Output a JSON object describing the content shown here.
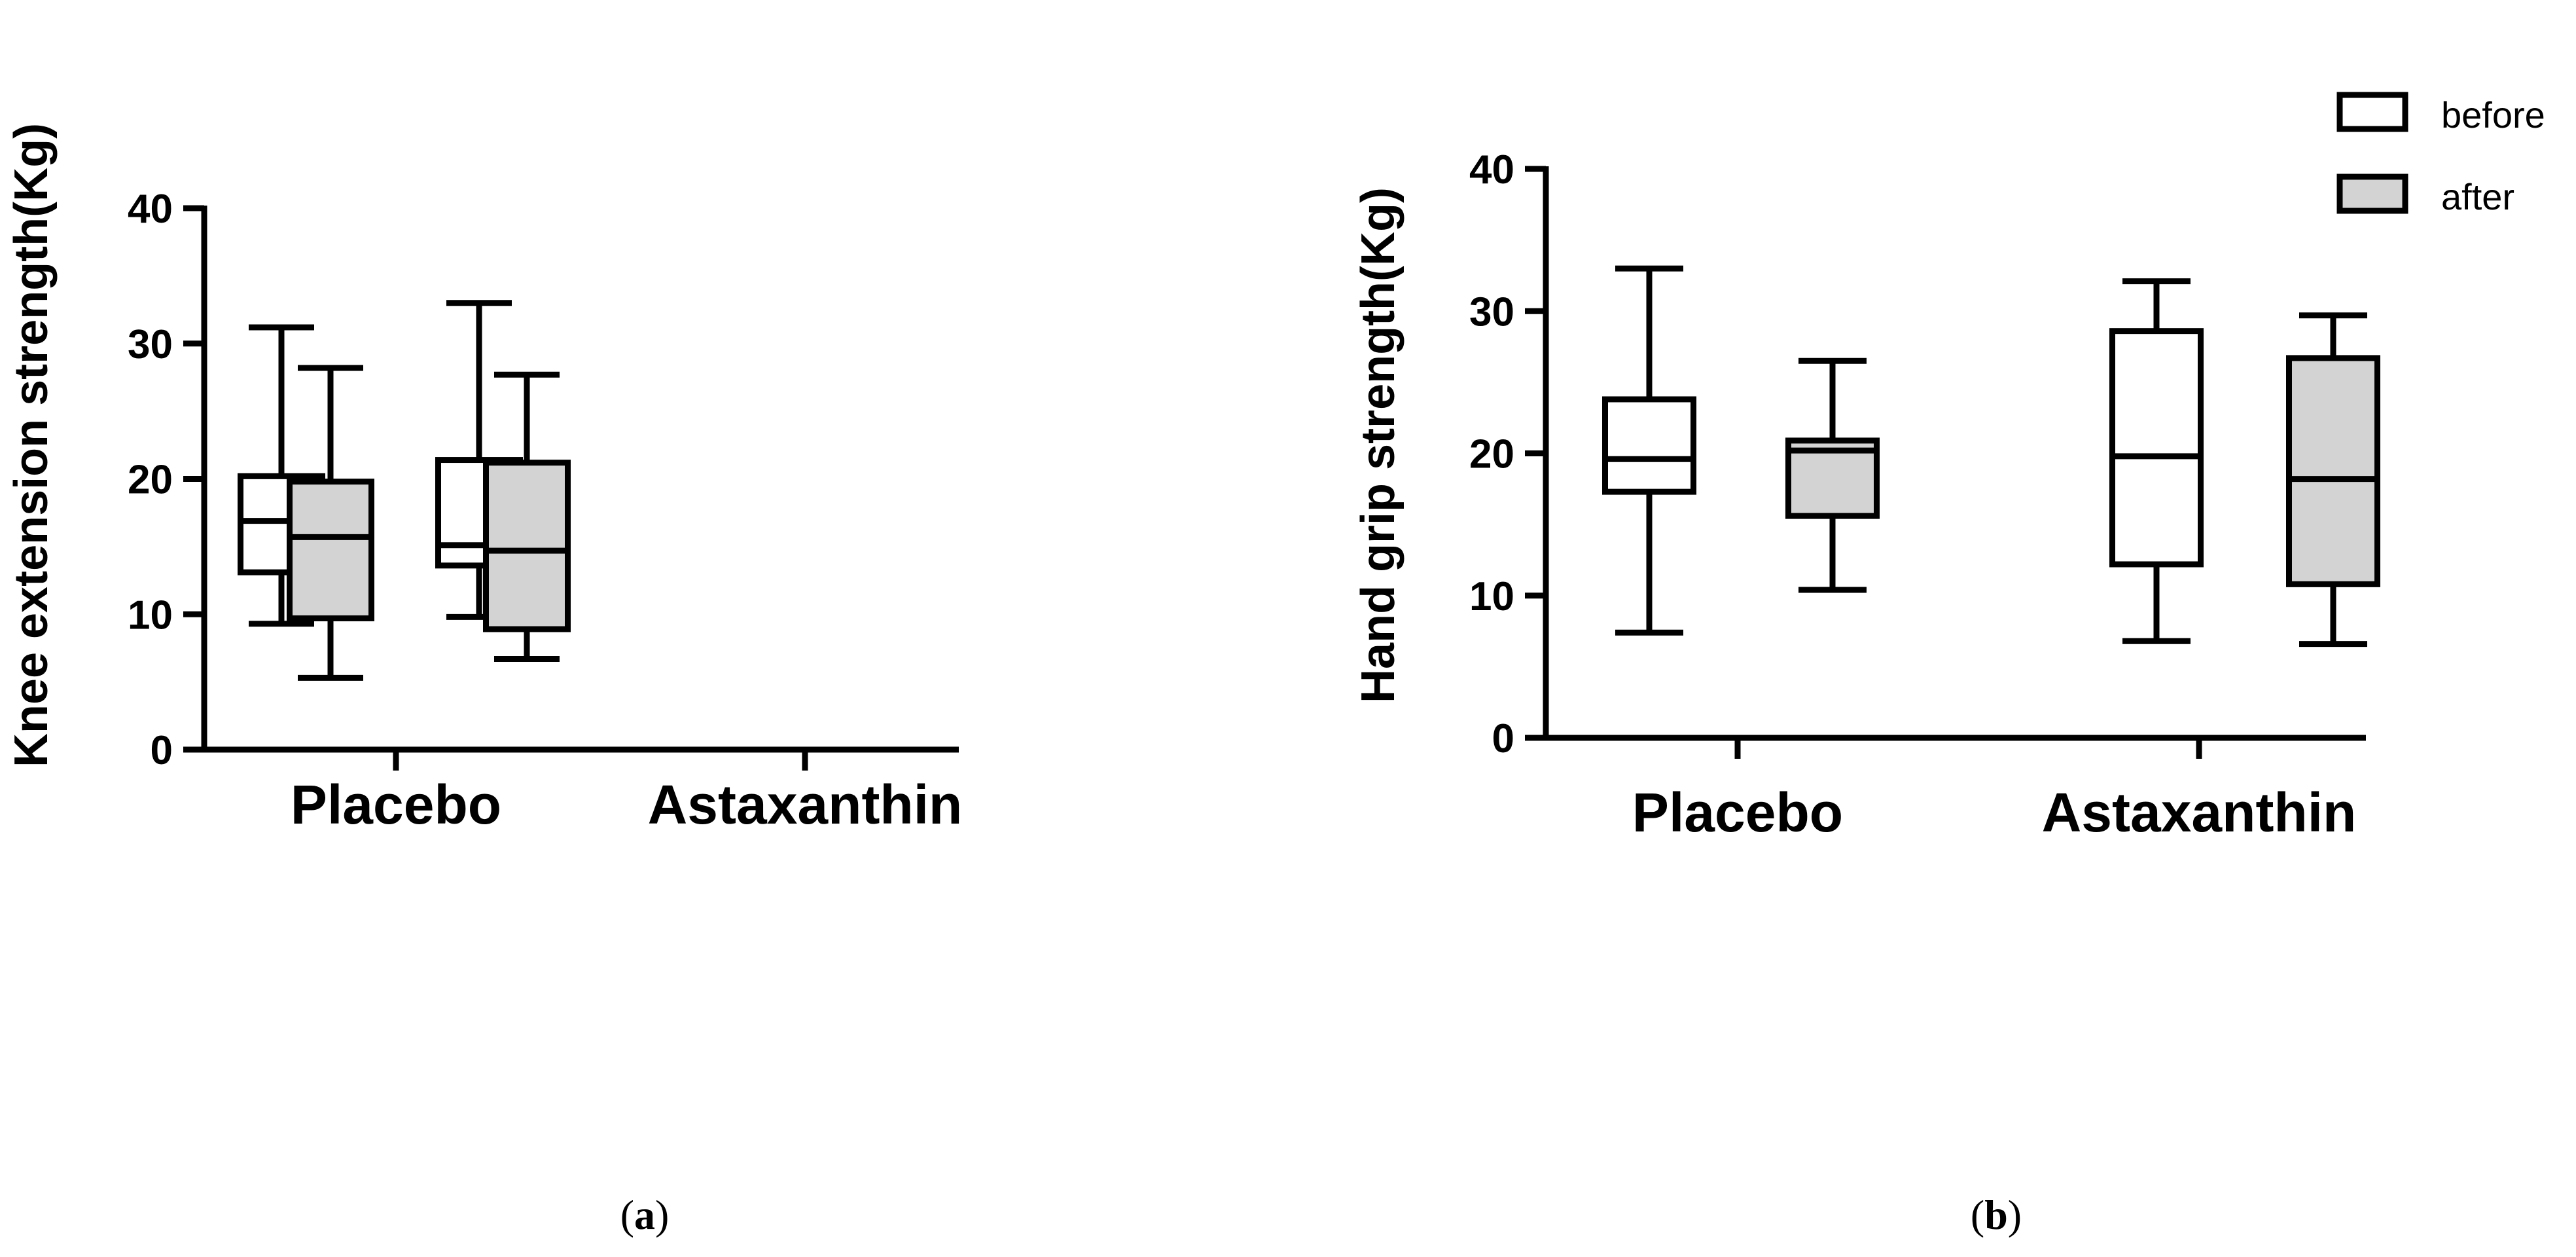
{
  "legend": {
    "items": [
      {
        "label": "before",
        "fill": "#ffffff"
      },
      {
        "label": "after",
        "fill": "#d3d3d3"
      }
    ]
  },
  "colors": {
    "stroke": "#000000",
    "before": "#ffffff",
    "after": "#d3d3d3"
  },
  "chart_data": [
    {
      "type": "box",
      "panel_label": "a",
      "ylabel": "Knee extension strength(Kg)",
      "ylim": [
        0,
        40
      ],
      "yticks": [
        "0",
        "10",
        "20",
        "30",
        "40"
      ],
      "categories": [
        "Placebo",
        "Astaxanthin"
      ],
      "series": [
        {
          "name": "before",
          "boxes": [
            {
              "category": "Placebo",
              "min": 9.3,
              "q1": 13.1,
              "median": 16.9,
              "q3": 20.2,
              "max": 31.2
            },
            {
              "category": "Astaxanthin",
              "min": 9.8,
              "q1": 13.6,
              "median": 15.1,
              "q3": 21.4,
              "max": 33.0
            }
          ]
        },
        {
          "name": "after",
          "boxes": [
            {
              "category": "Placebo",
              "min": 5.3,
              "q1": 9.7,
              "median": 15.7,
              "q3": 19.8,
              "max": 28.2
            },
            {
              "category": "Astaxanthin",
              "min": 6.7,
              "q1": 8.9,
              "median": 14.7,
              "q3": 21.2,
              "max": 27.7
            }
          ]
        }
      ]
    },
    {
      "type": "box",
      "panel_label": "b",
      "ylabel": "Hand grip strength(Kg)",
      "ylim": [
        0,
        40
      ],
      "yticks": [
        "0",
        "10",
        "20",
        "30",
        "40"
      ],
      "categories": [
        "Placebo",
        "Astaxanthin"
      ],
      "series": [
        {
          "name": "before",
          "boxes": [
            {
              "category": "Placebo",
              "min": 7.4,
              "q1": 17.3,
              "median": 19.6,
              "q3": 23.8,
              "max": 33.0
            },
            {
              "category": "Astaxanthin",
              "min": 6.8,
              "q1": 12.2,
              "median": 19.8,
              "q3": 28.6,
              "max": 32.1
            }
          ]
        },
        {
          "name": "after",
          "boxes": [
            {
              "category": "Placebo",
              "min": 10.4,
              "q1": 15.6,
              "median": 20.2,
              "q3": 20.9,
              "max": 26.5
            },
            {
              "category": "Astaxanthin",
              "min": 6.6,
              "q1": 10.8,
              "median": 18.2,
              "q3": 26.7,
              "max": 29.7
            }
          ]
        }
      ]
    }
  ]
}
